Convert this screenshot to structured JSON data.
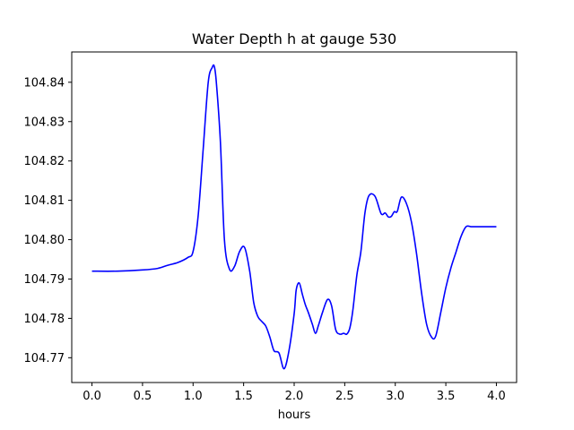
{
  "chart_data": {
    "type": "line",
    "title": "Water Depth h at gauge 530",
    "xlabel": "hours",
    "ylabel": "",
    "xlim": [
      -0.2,
      4.2
    ],
    "ylim": [
      104.7637,
      104.8477
    ],
    "xticks": [
      0.0,
      0.5,
      1.0,
      1.5,
      2.0,
      2.5,
      3.0,
      3.5,
      4.0
    ],
    "xtick_labels": [
      "0.0",
      "0.5",
      "1.0",
      "1.5",
      "2.0",
      "2.5",
      "3.0",
      "3.5",
      "4.0"
    ],
    "yticks": [
      104.77,
      104.78,
      104.79,
      104.8,
      104.81,
      104.82,
      104.83,
      104.84
    ],
    "ytick_labels": [
      "104.77",
      "104.78",
      "104.79",
      "104.80",
      "104.81",
      "104.82",
      "104.83",
      "104.84"
    ],
    "grid": false,
    "legend": "none",
    "series": [
      {
        "color": "#0000ff",
        "x": [
          0.0,
          0.25,
          0.5,
          0.65,
          0.75,
          0.85,
          0.95,
          1.0,
          1.05,
          1.1,
          1.15,
          1.19,
          1.21,
          1.23,
          1.27,
          1.31,
          1.36,
          1.41,
          1.46,
          1.51,
          1.56,
          1.6,
          1.64,
          1.68,
          1.72,
          1.76,
          1.8,
          1.85,
          1.9,
          1.95,
          2.0,
          2.02,
          2.05,
          2.08,
          2.11,
          2.14,
          2.18,
          2.21,
          2.24,
          2.28,
          2.33,
          2.37,
          2.41,
          2.45,
          2.49,
          2.52,
          2.55,
          2.58,
          2.62,
          2.66,
          2.7,
          2.74,
          2.8,
          2.86,
          2.9,
          2.93,
          2.96,
          2.99,
          3.02,
          3.06,
          3.11,
          3.16,
          3.21,
          3.26,
          3.31,
          3.36,
          3.4,
          3.45,
          3.5,
          3.55,
          3.6,
          3.65,
          3.7,
          3.75,
          3.8,
          3.85,
          3.9,
          3.95,
          4.0
        ],
        "values": [
          104.792,
          104.792,
          104.7923,
          104.7927,
          104.7935,
          104.7942,
          104.7955,
          104.797,
          104.806,
          104.823,
          104.84,
          104.8438,
          104.844,
          104.84,
          104.825,
          104.8,
          104.7925,
          104.7932,
          104.797,
          104.798,
          104.792,
          104.784,
          104.7805,
          104.7792,
          104.778,
          104.7752,
          104.7718,
          104.7712,
          104.7672,
          104.772,
          104.7812,
          104.7872,
          104.789,
          104.7862,
          104.7835,
          104.7815,
          104.7785,
          104.7762,
          104.7782,
          104.7815,
          104.7848,
          104.7832,
          104.7772,
          104.776,
          104.7762,
          104.776,
          104.7775,
          104.782,
          104.791,
          104.797,
          104.8068,
          104.8112,
          104.811,
          104.8066,
          104.8068,
          104.8058,
          104.8059,
          104.8071,
          104.8072,
          104.8108,
          104.8092,
          104.8045,
          104.7965,
          104.7865,
          104.7785,
          104.7752,
          104.7755,
          104.7815,
          104.7878,
          104.7928,
          104.7968,
          104.8008,
          104.8033,
          104.8033,
          104.8033,
          104.8033,
          104.8033,
          104.8033,
          104.8033
        ]
      }
    ]
  }
}
